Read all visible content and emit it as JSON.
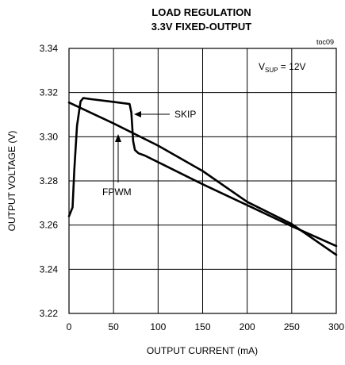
{
  "chart_data": {
    "type": "line",
    "title": "LOAD REGULATION",
    "subtitle": "3.3V FIXED-OUTPUT",
    "figure_id": "toc09",
    "xlabel": "OUTPUT CURRENT (mA)",
    "ylabel": "OUTPUT VOLTAGE (V)",
    "xlim": [
      0,
      300
    ],
    "ylim": [
      3.22,
      3.34
    ],
    "xticks": [
      0,
      50,
      100,
      150,
      200,
      250,
      300
    ],
    "yticks": [
      3.22,
      3.24,
      3.26,
      3.28,
      3.3,
      3.32,
      3.34
    ],
    "xtick_labels": [
      "0",
      "50",
      "100",
      "150",
      "200",
      "250",
      "300"
    ],
    "ytick_labels": [
      "3.22",
      "3.24",
      "3.26",
      "3.28",
      "3.30",
      "3.32",
      "3.34"
    ],
    "grid": true,
    "condition": {
      "main": "V",
      "sub": "SUP",
      "rest": " = 12V"
    },
    "series": [
      {
        "name": "SKIP",
        "x": [
          0,
          2,
          4,
          6,
          9,
          13,
          16,
          25,
          50,
          68,
          70,
          72,
          74,
          78,
          85,
          100,
          150,
          200,
          250,
          300
        ],
        "y": [
          3.264,
          3.266,
          3.268,
          3.285,
          3.305,
          3.316,
          3.3175,
          3.317,
          3.3158,
          3.3148,
          3.311,
          3.298,
          3.294,
          3.2925,
          3.2915,
          3.2885,
          3.2785,
          3.269,
          3.2595,
          3.2505
        ]
      },
      {
        "name": "FPWM",
        "x": [
          0,
          50,
          100,
          150,
          200,
          250,
          300
        ],
        "y": [
          3.3155,
          3.306,
          3.296,
          3.2845,
          3.2705,
          3.2605,
          3.2465
        ]
      }
    ],
    "annotations": [
      {
        "text": "SKIP",
        "points_to": {
          "x": 72,
          "y": 3.3105
        }
      },
      {
        "text": "FPWM",
        "points_to": {
          "x": 55,
          "y": 3.3045
        }
      }
    ]
  }
}
